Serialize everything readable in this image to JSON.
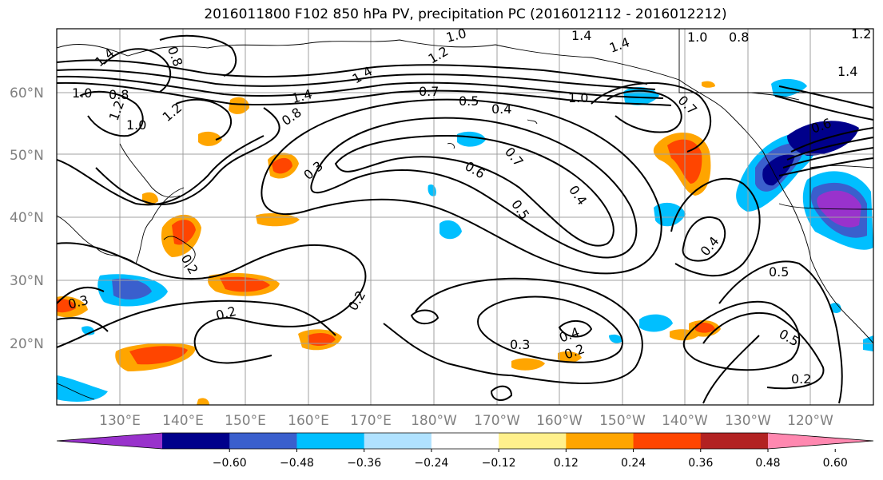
{
  "title": "2016011800 F102 850 hPa PV, precipitation PC (2016012112 - 2016012212)",
  "lat_labels": [
    "60°N",
    "50°N",
    "40°N",
    "30°N",
    "20°N"
  ],
  "lon_labels": [
    "130°E",
    "140°E",
    "150°E",
    "160°E",
    "170°E",
    "180°W",
    "170°W",
    "160°W",
    "150°W",
    "140°W",
    "130°W",
    "120°W"
  ],
  "colorbar": {
    "ticks": [
      "−0.60",
      "−0.48",
      "−0.36",
      "−0.24",
      "−0.12",
      "0.12",
      "0.24",
      "0.36",
      "0.48",
      "0.60"
    ],
    "colors": [
      "#9932cc",
      "#00008b",
      "#3a5fcd",
      "#00bfff",
      "#b0e2ff",
      "#ffffff",
      "#fff08c",
      "#ffa500",
      "#ff4500",
      "#b22222",
      "#ff88b0"
    ]
  },
  "contour_labels": [
    "1.4",
    "1.4",
    "1.4",
    "1.0",
    "0.8",
    "1.2",
    "1.0",
    "0.8",
    "1.2",
    "1.4",
    "1.4",
    "1.2",
    "0.8",
    "1.0",
    "0.7",
    "0.5",
    "0.4",
    "1.0",
    "0.7",
    "0.7",
    "0.6",
    "0.5",
    "0.4",
    "0.3",
    "0.2",
    "0.2",
    "0.3",
    "0.2",
    "0.3",
    "0.4",
    "0.2",
    "0.4",
    "0.5",
    "0.5",
    "0.2",
    "1.4",
    "0.8",
    "1.0",
    "0.6",
    "1.2"
  ],
  "colors": {
    "frame": "#000000",
    "grid": "#a0a0a0",
    "axis_label": "#808080"
  }
}
